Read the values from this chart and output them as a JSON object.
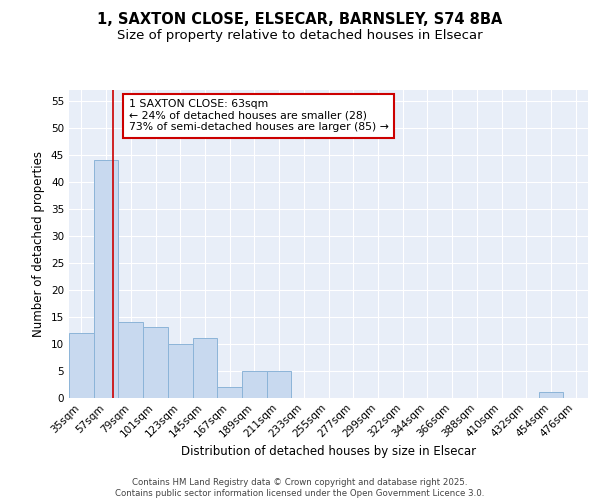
{
  "title_line1": "1, SAXTON CLOSE, ELSECAR, BARNSLEY, S74 8BA",
  "title_line2": "Size of property relative to detached houses in Elsecar",
  "xlabel": "Distribution of detached houses by size in Elsecar",
  "ylabel": "Number of detached properties",
  "categories": [
    "35sqm",
    "57sqm",
    "79sqm",
    "101sqm",
    "123sqm",
    "145sqm",
    "167sqm",
    "189sqm",
    "211sqm",
    "233sqm",
    "255sqm",
    "277sqm",
    "299sqm",
    "322sqm",
    "344sqm",
    "366sqm",
    "388sqm",
    "410sqm",
    "432sqm",
    "454sqm",
    "476sqm"
  ],
  "values": [
    12,
    44,
    14,
    13,
    10,
    11,
    2,
    5,
    5,
    0,
    0,
    0,
    0,
    0,
    0,
    0,
    0,
    0,
    0,
    1,
    0
  ],
  "bar_color": "#c8d9ef",
  "bar_edge_color": "#8cb4d8",
  "bg_color": "#e8eef8",
  "grid_color": "#ffffff",
  "red_line_x": 1.27,
  "annotation_text": "1 SAXTON CLOSE: 63sqm\n← 24% of detached houses are smaller (28)\n73% of semi-detached houses are larger (85) →",
  "annotation_box_color": "#ffffff",
  "annotation_box_edge": "#cc0000",
  "ylim": [
    0,
    57
  ],
  "yticks": [
    0,
    5,
    10,
    15,
    20,
    25,
    30,
    35,
    40,
    45,
    50,
    55
  ],
  "footer_text": "Contains HM Land Registry data © Crown copyright and database right 2025.\nContains public sector information licensed under the Open Government Licence 3.0.",
  "title_fontsize": 10.5,
  "subtitle_fontsize": 9.5,
  "axis_label_fontsize": 8.5,
  "tick_fontsize": 7.5,
  "annotation_fontsize": 7.8,
  "footer_fontsize": 6.2
}
